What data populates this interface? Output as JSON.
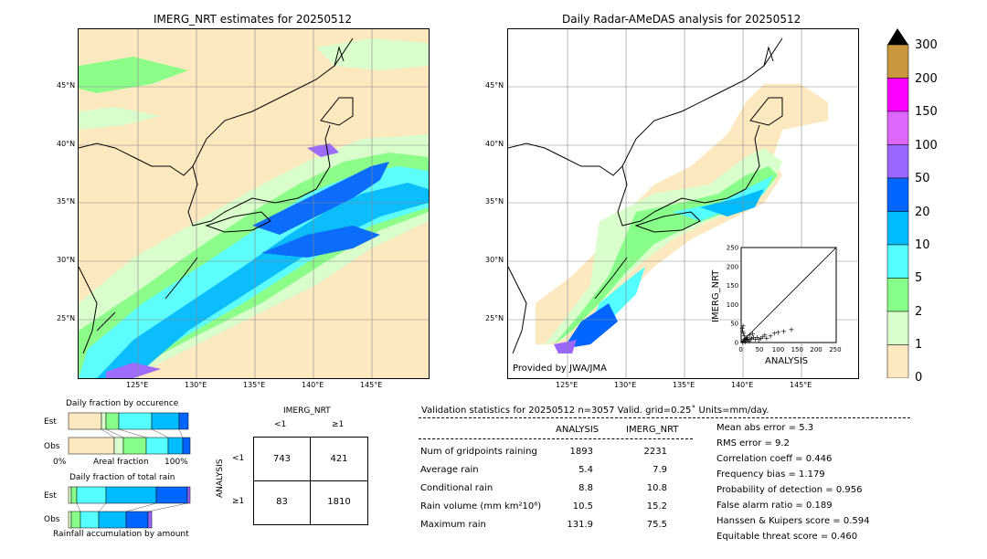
{
  "left_map": {
    "title": "IMERG_NRT estimates for 20250512",
    "lat_labels": [
      "45°N",
      "40°N",
      "35°N",
      "30°N",
      "25°N"
    ],
    "lon_labels": [
      "125°E",
      "130°E",
      "135°E",
      "140°E",
      "145°E"
    ]
  },
  "right_map": {
    "title": "Daily Radar-AMeDAS analysis for 20250512",
    "lat_labels": [
      "45°N",
      "40°N",
      "35°N",
      "30°N",
      "25°N"
    ],
    "lon_labels": [
      "125°E",
      "130°E",
      "135°E",
      "140°E",
      "145°E"
    ],
    "credit": "Provided by JWA/JMA"
  },
  "colorbar": {
    "labels": [
      "300",
      "200",
      "150",
      "100",
      "50",
      "20",
      "10",
      "5",
      "2",
      "1",
      "0"
    ],
    "colors": [
      "#c8963c",
      "#ff00ff",
      "#dd66ff",
      "#9966ff",
      "#0066ff",
      "#00bbff",
      "#55ffff",
      "#88ff88",
      "#d8ffcc",
      "#fde9bf"
    ]
  },
  "scatter": {
    "xlabel": "ANALYSIS",
    "ylabel": "IMERG_NRT",
    "ticks": [
      "0",
      "50",
      "100",
      "150",
      "200",
      "250"
    ]
  },
  "occurrence": {
    "title": "Daily fraction by occurence",
    "row_est": "Est",
    "row_obs": "Obs",
    "axis_left": "0%",
    "axis_mid": "Areal fraction",
    "axis_right": "100%"
  },
  "total_rain": {
    "title": "Daily fraction of total rain",
    "row_est": "Est",
    "row_obs": "Obs",
    "caption": "Rainfall accumulation by amount"
  },
  "contingency": {
    "col_header": "IMERG_NRT",
    "row_header": "ANALYSIS",
    "col_lt": "<1",
    "col_ge": "≥1",
    "row_lt": "<1",
    "row_ge": "≥1",
    "c11": "743",
    "c12": "421",
    "c21": "83",
    "c22": "1810"
  },
  "validation": {
    "header": "Validation statistics for 20250512  n=3057 Valid. grid=0.25˚ Units=mm/day.",
    "col_analysis": "ANALYSIS",
    "col_imerg": "IMERG_NRT",
    "rows": [
      {
        "label": "Num of gridpoints raining",
        "analysis": "1893",
        "imerg": "2231"
      },
      {
        "label": "Average rain",
        "analysis": "5.4",
        "imerg": "7.9"
      },
      {
        "label": "Conditional rain",
        "analysis": "8.8",
        "imerg": "10.8"
      },
      {
        "label": "Rain volume (mm km²10⁶)",
        "analysis": "10.5",
        "imerg": "15.2"
      },
      {
        "label": "Maximum rain",
        "analysis": "131.9",
        "imerg": "75.5"
      }
    ],
    "scores": [
      "Mean abs error =    5.3",
      "RMS error =    9.2",
      "Correlation coeff =  0.446",
      "Frequency bias =  1.179",
      "Probability of detection =  0.956",
      "False alarm ratio =  0.189",
      "Hanssen & Kuipers score =  0.594",
      "Equitable threat score =  0.460"
    ]
  },
  "chart_data": [
    {
      "type": "scatter",
      "xlabel": "ANALYSIS",
      "ylabel": "IMERG_NRT",
      "xlim": [
        0,
        250
      ],
      "ylim": [
        0,
        250
      ],
      "ticks": [
        0,
        50,
        100,
        150,
        200,
        250
      ],
      "points": [
        [
          2,
          1
        ],
        [
          3,
          5
        ],
        [
          5,
          8
        ],
        [
          8,
          3
        ],
        [
          10,
          12
        ],
        [
          12,
          6
        ],
        [
          15,
          10
        ],
        [
          6,
          18
        ],
        [
          4,
          25
        ],
        [
          2,
          30
        ],
        [
          1,
          38
        ],
        [
          3,
          45
        ],
        [
          18,
          5
        ],
        [
          22,
          8
        ],
        [
          25,
          12
        ],
        [
          30,
          15
        ],
        [
          35,
          10
        ],
        [
          40,
          14
        ],
        [
          45,
          8
        ],
        [
          50,
          12
        ],
        [
          55,
          16
        ],
        [
          60,
          20
        ],
        [
          65,
          12
        ],
        [
          75,
          18
        ],
        [
          85,
          25
        ],
        [
          95,
          28
        ],
        [
          110,
          30
        ],
        [
          130,
          35
        ],
        [
          20,
          20
        ],
        [
          28,
          24
        ],
        [
          14,
          14
        ],
        [
          9,
          9
        ]
      ]
    },
    {
      "type": "bar",
      "title": "Daily fraction by occurence",
      "categories": [
        "Est",
        "Obs"
      ]
    },
    {
      "type": "bar",
      "title": "Daily fraction of total rain",
      "categories": [
        "Est",
        "Obs"
      ]
    }
  ]
}
